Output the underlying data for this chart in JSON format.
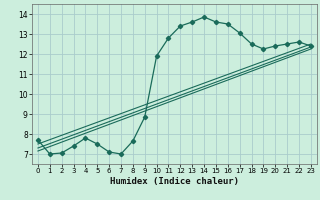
{
  "xlabel": "Humidex (Indice chaleur)",
  "background_color": "#cceedd",
  "grid_color": "#aacccc",
  "line_color": "#1a6b5a",
  "xlim": [
    -0.5,
    23.5
  ],
  "ylim": [
    6.5,
    14.5
  ],
  "xticks": [
    0,
    1,
    2,
    3,
    4,
    5,
    6,
    7,
    8,
    9,
    10,
    11,
    12,
    13,
    14,
    15,
    16,
    17,
    18,
    19,
    20,
    21,
    22,
    23
  ],
  "yticks": [
    7,
    8,
    9,
    10,
    11,
    12,
    13,
    14
  ],
  "curve1_x": [
    0,
    1,
    2,
    3,
    4,
    5,
    6,
    7,
    8,
    9,
    10,
    11,
    12,
    13,
    14,
    15,
    16,
    17,
    18,
    19,
    20,
    21,
    22,
    23
  ],
  "curve1_y": [
    7.7,
    7.0,
    7.05,
    7.4,
    7.8,
    7.5,
    7.1,
    7.0,
    7.65,
    8.85,
    11.9,
    12.8,
    13.4,
    13.6,
    13.85,
    13.6,
    13.5,
    13.05,
    12.5,
    12.25,
    12.4,
    12.5,
    12.6,
    12.4
  ],
  "line1_x": [
    0,
    23
  ],
  "line1_y": [
    7.15,
    12.25
  ],
  "line2_x": [
    0,
    23
  ],
  "line2_y": [
    7.3,
    12.35
  ],
  "line3_x": [
    0,
    23
  ],
  "line3_y": [
    7.5,
    12.5
  ]
}
